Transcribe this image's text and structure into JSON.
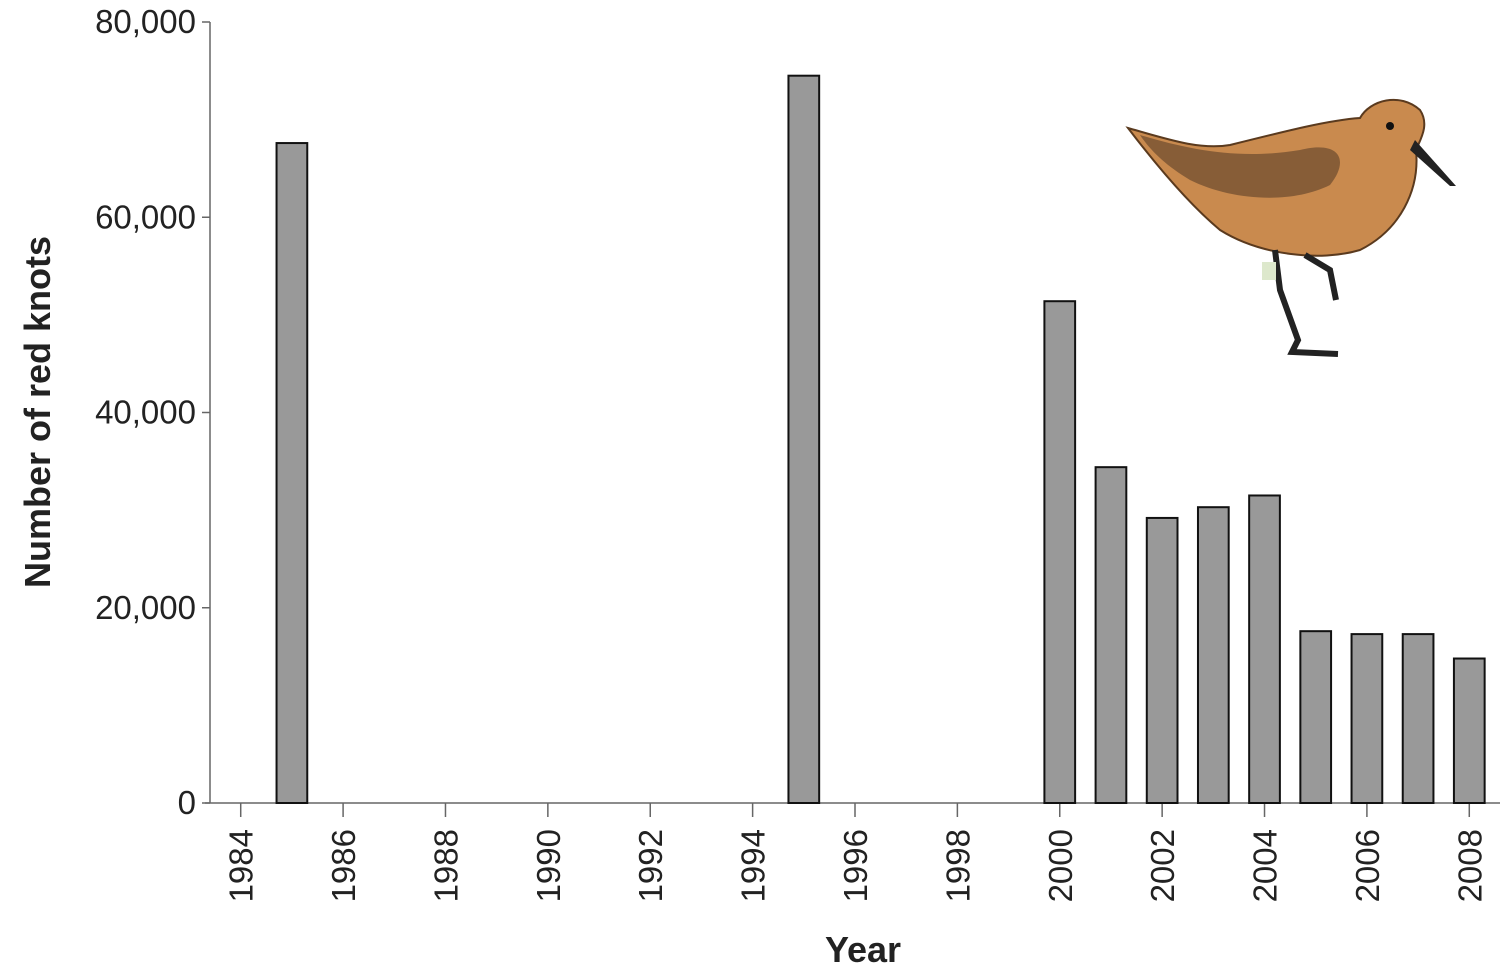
{
  "chart_data": {
    "type": "bar",
    "x_label": "Year",
    "y_label": "Number of red knots",
    "x": [
      1985,
      1995,
      2000,
      2001,
      2002,
      2003,
      2004,
      2005,
      2006,
      2007,
      2008
    ],
    "values": [
      67600,
      74500,
      51400,
      34400,
      29200,
      30300,
      31500,
      17600,
      17300,
      17300,
      14800
    ],
    "color": "#999999",
    "xlim": [
      1983.4,
      2008.6
    ],
    "xticks": [
      1984,
      1986,
      1988,
      1990,
      1992,
      1994,
      1996,
      1998,
      2000,
      2002,
      2004,
      2006,
      2008
    ],
    "ylim": [
      0,
      80000
    ],
    "yticks": [
      {
        "value": 0,
        "label": "0"
      },
      {
        "value": 20000,
        "label": "20,000"
      },
      {
        "value": 40000,
        "label": "40,000"
      },
      {
        "value": 60000,
        "label": "60,000"
      },
      {
        "value": 80000,
        "label": "80,000"
      }
    ]
  }
}
